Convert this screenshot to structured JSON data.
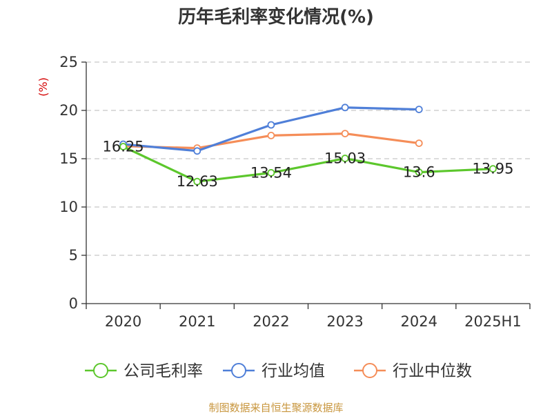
{
  "chart_data": {
    "type": "line",
    "title": "历年毛利率变化情况(%)",
    "ylabel": "(%)",
    "xlabel": "",
    "categories": [
      "2020",
      "2021",
      "2022",
      "2023",
      "2024",
      "2025H1"
    ],
    "ylim": [
      0,
      25
    ],
    "yticks": [
      0,
      5,
      10,
      15,
      20,
      25
    ],
    "grid": true,
    "legend_position": "bottom",
    "series": [
      {
        "name": "公司毛利率",
        "color": "#5cc72c",
        "values": [
          16.25,
          12.63,
          13.54,
          15.03,
          13.6,
          13.95
        ],
        "labels": [
          "16.25",
          "12.63",
          "13.54",
          "15.03",
          "13.6",
          "13.95"
        ]
      },
      {
        "name": "行业均值",
        "color": "#4f7fd8",
        "values": [
          16.5,
          15.8,
          18.5,
          20.3,
          20.1,
          null
        ]
      },
      {
        "name": "行业中位数",
        "color": "#f58d58",
        "values": [
          16.3,
          16.1,
          17.4,
          17.6,
          16.6,
          null
        ]
      }
    ]
  },
  "footer": {
    "source": "制图数据来自恒生聚源数据库"
  }
}
